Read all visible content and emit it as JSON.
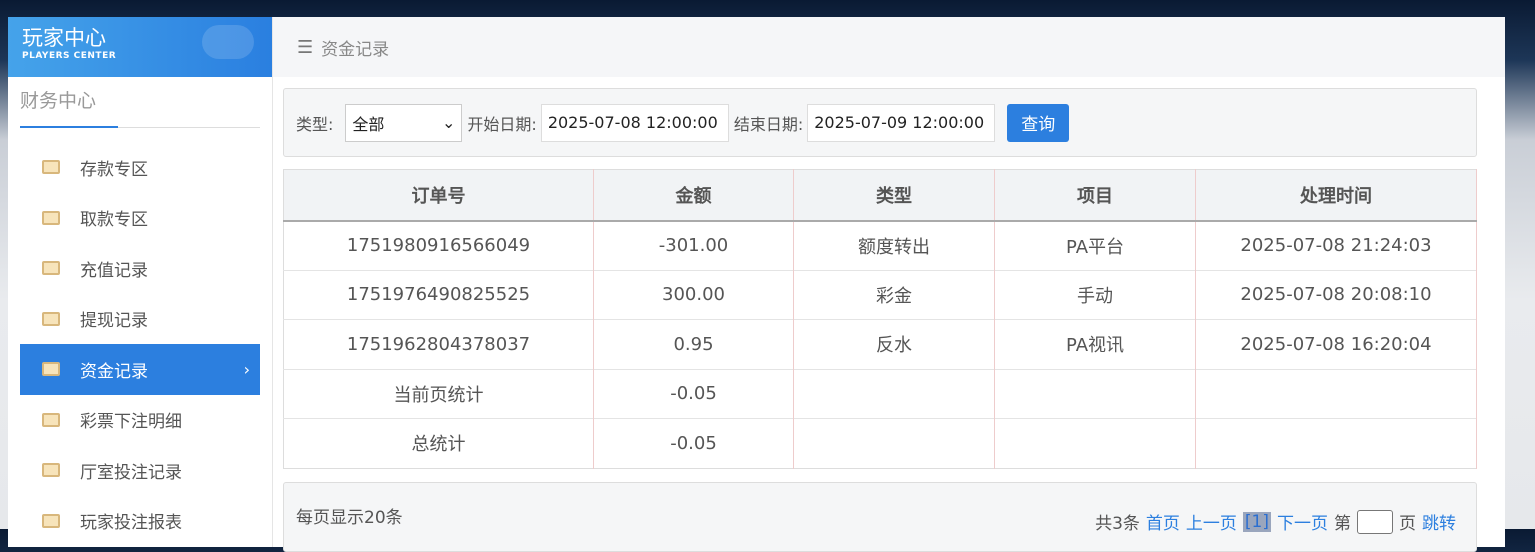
{
  "logo": {
    "title": "玩家中心",
    "subtitle": "PLAYERS CENTER"
  },
  "sidebar": {
    "section": "财务中心",
    "items": [
      {
        "label": "存款专区",
        "icon": "deposit-card-icon"
      },
      {
        "label": "取款专区",
        "icon": "withdraw-hand-icon"
      },
      {
        "label": "充值记录",
        "icon": "money-bag-icon"
      },
      {
        "label": "提现记录",
        "icon": "wallet-icon"
      },
      {
        "label": "资金记录",
        "icon": "fund-icon",
        "active": true
      },
      {
        "label": "彩票下注明细",
        "icon": "list-icon"
      },
      {
        "label": "厅室投注记录",
        "icon": "bullet-list-icon"
      },
      {
        "label": "玩家投注报表",
        "icon": "chart-icon"
      }
    ]
  },
  "breadcrumb": "资金记录",
  "filter": {
    "type_label": "类型:",
    "type_value": "全部",
    "start_label": "开始日期:",
    "start_value": "2025-07-08 12:00:00",
    "end_label": "结束日期:",
    "end_value": "2025-07-09 12:00:00",
    "query": "查询"
  },
  "table": {
    "headers": [
      "订单号",
      "金额",
      "类型",
      "项目",
      "处理时间"
    ],
    "rows": [
      [
        "1751980916566049",
        "-301.00",
        "额度转出",
        "PA平台",
        "2025-07-08 21:24:03"
      ],
      [
        "1751976490825525",
        "300.00",
        "彩金",
        "手动",
        "2025-07-08 20:08:10"
      ],
      [
        "1751962804378037",
        "0.95",
        "反水",
        "PA视讯",
        "2025-07-08 16:20:04"
      ],
      [
        "当前页统计",
        "-0.05",
        "",
        "",
        ""
      ],
      [
        "总统计",
        "-0.05",
        "",
        "",
        ""
      ]
    ]
  },
  "pager": {
    "per_page": "每页显示20条",
    "total": "共3条",
    "first": "首页",
    "prev": "上一页",
    "current": "[1]",
    "next": "下一页",
    "page_pre": "第",
    "page_post": "页",
    "jump": "跳转"
  }
}
